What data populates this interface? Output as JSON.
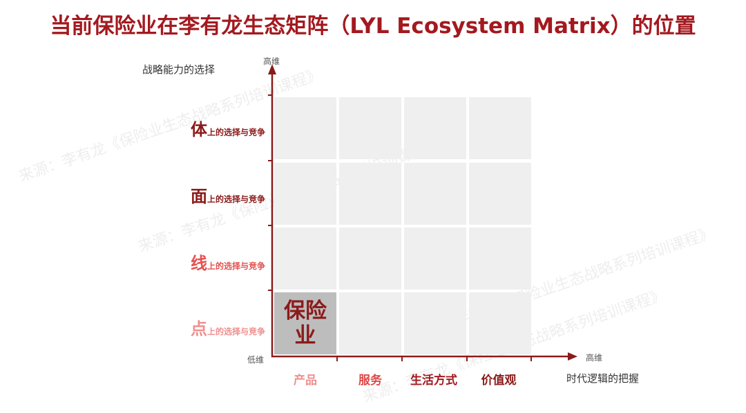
{
  "title": "当前保险业在李有龙生态矩阵（LYL Ecosystem Matrix）的位置",
  "y_axis": {
    "title": "战略能力的选择",
    "high": "高维",
    "low": "低维"
  },
  "x_axis": {
    "title": "时代逻辑的把握",
    "high": "高维"
  },
  "rows": [
    {
      "big": "体",
      "sub": "上的选择与竞争",
      "color": "#8b1a1a"
    },
    {
      "big": "面",
      "sub": "上的选择与竞争",
      "color": "#8b1a1a"
    },
    {
      "big": "线",
      "sub": "上的选择与竞争",
      "color": "#e55050"
    },
    {
      "big": "点",
      "sub": "上的选择与竞争",
      "color": "#ef8f8f"
    }
  ],
  "columns": [
    {
      "label": "产品",
      "color": "#ef8f8f"
    },
    {
      "label": "服务",
      "color": "#e04848"
    },
    {
      "label": "生活方式",
      "color": "#a3191f"
    },
    {
      "label": "价值观",
      "color": "#8b1a1a"
    }
  ],
  "highlight_cell": {
    "text": "保险业",
    "row": "点",
    "column": "产品"
  },
  "watermark": "来源：李有龙《保险业生态战略系列培训课程》",
  "colors": {
    "title": "#a3191f",
    "axis": "#8b1a1a",
    "cell": "#efefef",
    "highlight": "#bdbdbd"
  }
}
